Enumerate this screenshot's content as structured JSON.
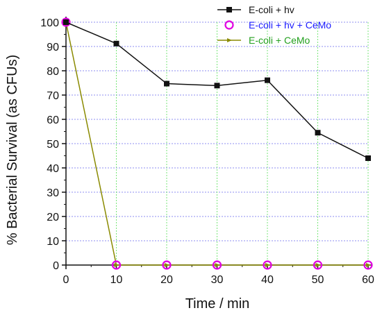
{
  "chart_data": {
    "type": "line",
    "title": "",
    "xlabel": "Time / min",
    "ylabel": "% Bacterial Survival (as CFUs)",
    "xlim": [
      0,
      60
    ],
    "ylim": [
      0,
      100
    ],
    "x_ticks": [
      "0",
      "10",
      "20",
      "30",
      "40",
      "50",
      "60"
    ],
    "y_ticks": [
      "0",
      "10",
      "20",
      "30",
      "40",
      "50",
      "60",
      "70",
      "80",
      "90",
      "100"
    ],
    "grid": true,
    "legend_position": "top-right",
    "x": [
      0,
      10,
      20,
      30,
      40,
      50,
      60
    ],
    "series": [
      {
        "name": "E-coli + hv",
        "values": [
          100,
          91.2,
          74.7,
          73.9,
          76.1,
          54.5,
          44.0
        ],
        "color": "#111111",
        "marker": "square"
      },
      {
        "name": "E-coli + hv + CeMo",
        "values": [
          100,
          0,
          0,
          0,
          0,
          0,
          0
        ],
        "color": "#e100e1",
        "marker": "circle"
      },
      {
        "name": "E-coli + CeMo",
        "values": [
          100,
          0,
          0,
          0,
          0,
          0,
          0
        ],
        "color": "#8a8a00",
        "marker": "triangle-right"
      }
    ],
    "legend_text_colors": [
      "#111111",
      "#1a1aff",
      "#23a01e"
    ],
    "grid_colors": {
      "horizontal": "#8c8cf0",
      "vertical": "#78e678"
    }
  }
}
